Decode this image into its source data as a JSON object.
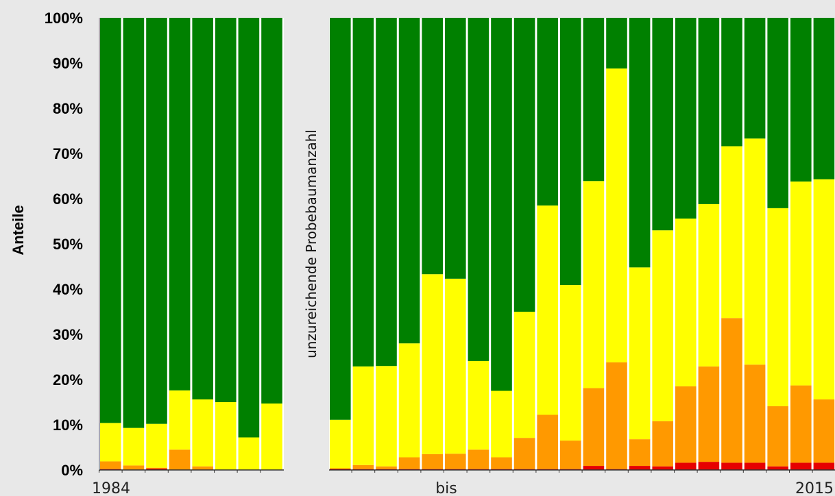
{
  "chart_data": {
    "type": "bar",
    "stacked": true,
    "ylabel": "Anteile",
    "ylim": [
      0,
      100
    ],
    "yticks": [
      "0%",
      "10%",
      "20%",
      "30%",
      "40%",
      "50%",
      "60%",
      "70%",
      "80%",
      "90%",
      "100%"
    ],
    "x_labels": {
      "start": "1984",
      "middle": "bis",
      "end": "2015"
    },
    "gap_annotation": "unzureichende Probebaumanzahl",
    "grid": false,
    "legend": "none",
    "gap_after_bar": 8,
    "segment_colors": [
      "#e60000",
      "#ff9900",
      "#ffff00",
      "#008000"
    ],
    "series": [
      {
        "values_red": [
          0.2,
          0.0,
          0.3,
          0.0,
          0.0,
          0.0,
          0.0,
          0.0,
          0.3,
          0.2,
          0.2,
          0.2,
          0.2,
          0.2,
          0.2,
          0.2,
          0.2,
          0.2,
          0.2,
          0.9,
          0.2,
          0.9,
          0.8,
          1.6,
          1.8,
          1.6,
          1.6,
          0.8,
          1.6,
          1.6
        ]
      },
      {
        "values_orange": [
          1.7,
          1.0,
          0.2,
          4.5,
          0.8,
          0.0,
          0.0,
          0.0,
          0.0,
          0.9,
          0.6,
          2.6,
          3.3,
          3.4,
          4.3,
          2.6,
          6.9,
          12.0,
          6.3,
          17.2,
          23.6,
          5.9,
          10.0,
          16.9,
          21.1,
          32.0,
          21.7,
          13.3,
          17.1,
          14.0
        ]
      },
      {
        "values_yellow": [
          8.5,
          8.3,
          9.7,
          13.1,
          14.8,
          15.0,
          7.2,
          14.7,
          10.8,
          21.8,
          22.2,
          25.2,
          39.8,
          38.7,
          19.6,
          14.7,
          27.9,
          46.3,
          34.4,
          45.8,
          65.0,
          38.0,
          42.2,
          37.1,
          35.9,
          38.0,
          50.0,
          43.8,
          45.1,
          48.7
        ]
      },
      {
        "values_green": [
          89.6,
          90.7,
          89.8,
          82.4,
          84.4,
          85.0,
          92.8,
          85.3,
          88.9,
          77.1,
          77.0,
          72.0,
          56.7,
          57.7,
          75.9,
          82.5,
          65.0,
          41.5,
          59.1,
          36.1,
          11.2,
          55.2,
          47.0,
          44.4,
          41.2,
          28.4,
          26.7,
          42.1,
          36.2,
          35.7
        ]
      }
    ]
  }
}
